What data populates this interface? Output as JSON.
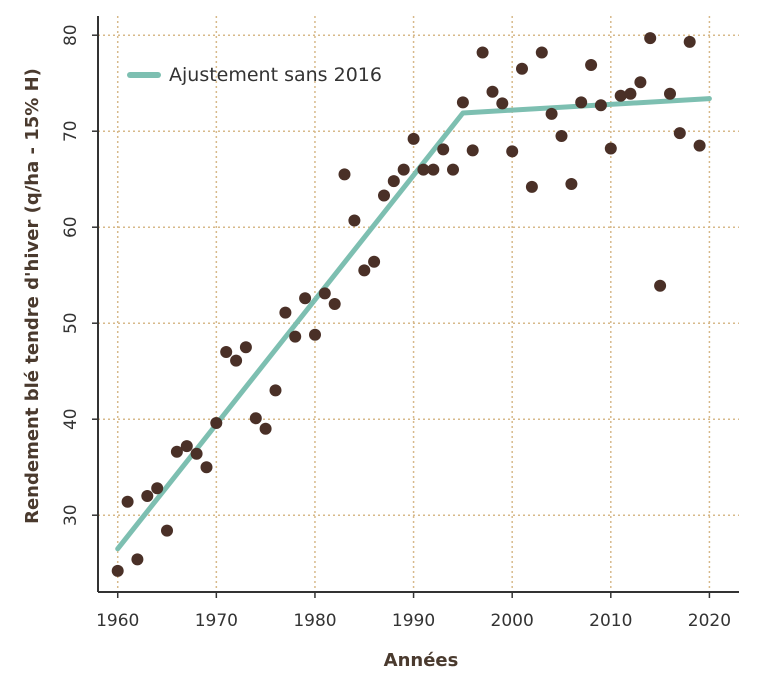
{
  "chart_data": {
    "type": "scatter",
    "xlabel": "Années",
    "ylabel": "Rendement blé tendre d'hiver (q/ha - 15% H)",
    "xlim": [
      1958,
      2023
    ],
    "ylim": [
      22,
      82
    ],
    "xticks": [
      1960,
      1970,
      1980,
      1990,
      2000,
      2010,
      2020
    ],
    "yticks": [
      30,
      40,
      50,
      60,
      70,
      80
    ],
    "grid": true,
    "legend_position": "top-left",
    "colors": {
      "points": "#4a3027",
      "fit": "#7dbfb1",
      "grid": "#d7b98a",
      "axis": "#333333"
    },
    "series": [
      {
        "type": "scatter",
        "values": [
          [
            1960,
            24.2
          ],
          [
            1961,
            31.4
          ],
          [
            1962,
            25.4
          ],
          [
            1963,
            32.0
          ],
          [
            1964,
            32.8
          ],
          [
            1965,
            28.4
          ],
          [
            1966,
            36.6
          ],
          [
            1967,
            37.2
          ],
          [
            1968,
            36.4
          ],
          [
            1969,
            35.0
          ],
          [
            1970,
            39.6
          ],
          [
            1971,
            47.0
          ],
          [
            1972,
            46.1
          ],
          [
            1973,
            47.5
          ],
          [
            1974,
            40.1
          ],
          [
            1975,
            39.0
          ],
          [
            1976,
            43.0
          ],
          [
            1977,
            51.1
          ],
          [
            1978,
            48.6
          ],
          [
            1979,
            52.6
          ],
          [
            1980,
            48.8
          ],
          [
            1981,
            53.1
          ],
          [
            1982,
            52.0
          ],
          [
            1983,
            65.5
          ],
          [
            1984,
            60.7
          ],
          [
            1985,
            55.5
          ],
          [
            1986,
            56.4
          ],
          [
            1987,
            63.3
          ],
          [
            1988,
            64.8
          ],
          [
            1989,
            66.0
          ],
          [
            1990,
            69.2
          ],
          [
            1991,
            66.0
          ],
          [
            1992,
            66.0
          ],
          [
            1993,
            68.1
          ],
          [
            1994,
            66.0
          ],
          [
            1995,
            73.0
          ],
          [
            1996,
            68.0
          ],
          [
            1997,
            78.2
          ],
          [
            1998,
            74.1
          ],
          [
            1999,
            72.9
          ],
          [
            2000,
            67.9
          ],
          [
            2001,
            76.5
          ],
          [
            2002,
            64.2
          ],
          [
            2003,
            78.2
          ],
          [
            2004,
            71.8
          ],
          [
            2005,
            69.5
          ],
          [
            2006,
            64.5
          ],
          [
            2007,
            73.0
          ],
          [
            2008,
            76.9
          ],
          [
            2009,
            72.7
          ],
          [
            2010,
            68.2
          ],
          [
            2011,
            73.7
          ],
          [
            2012,
            73.9
          ],
          [
            2013,
            75.1
          ],
          [
            2014,
            79.7
          ],
          [
            2015,
            53.9
          ],
          [
            2016,
            73.9
          ],
          [
            2017,
            69.8
          ],
          [
            2018,
            79.3
          ],
          [
            2019,
            68.5
          ]
        ]
      },
      {
        "type": "line",
        "name": "Ajustement sans 2016",
        "values": [
          [
            1960,
            26.5
          ],
          [
            1995,
            71.9
          ],
          [
            2020,
            73.4
          ]
        ]
      }
    ]
  }
}
